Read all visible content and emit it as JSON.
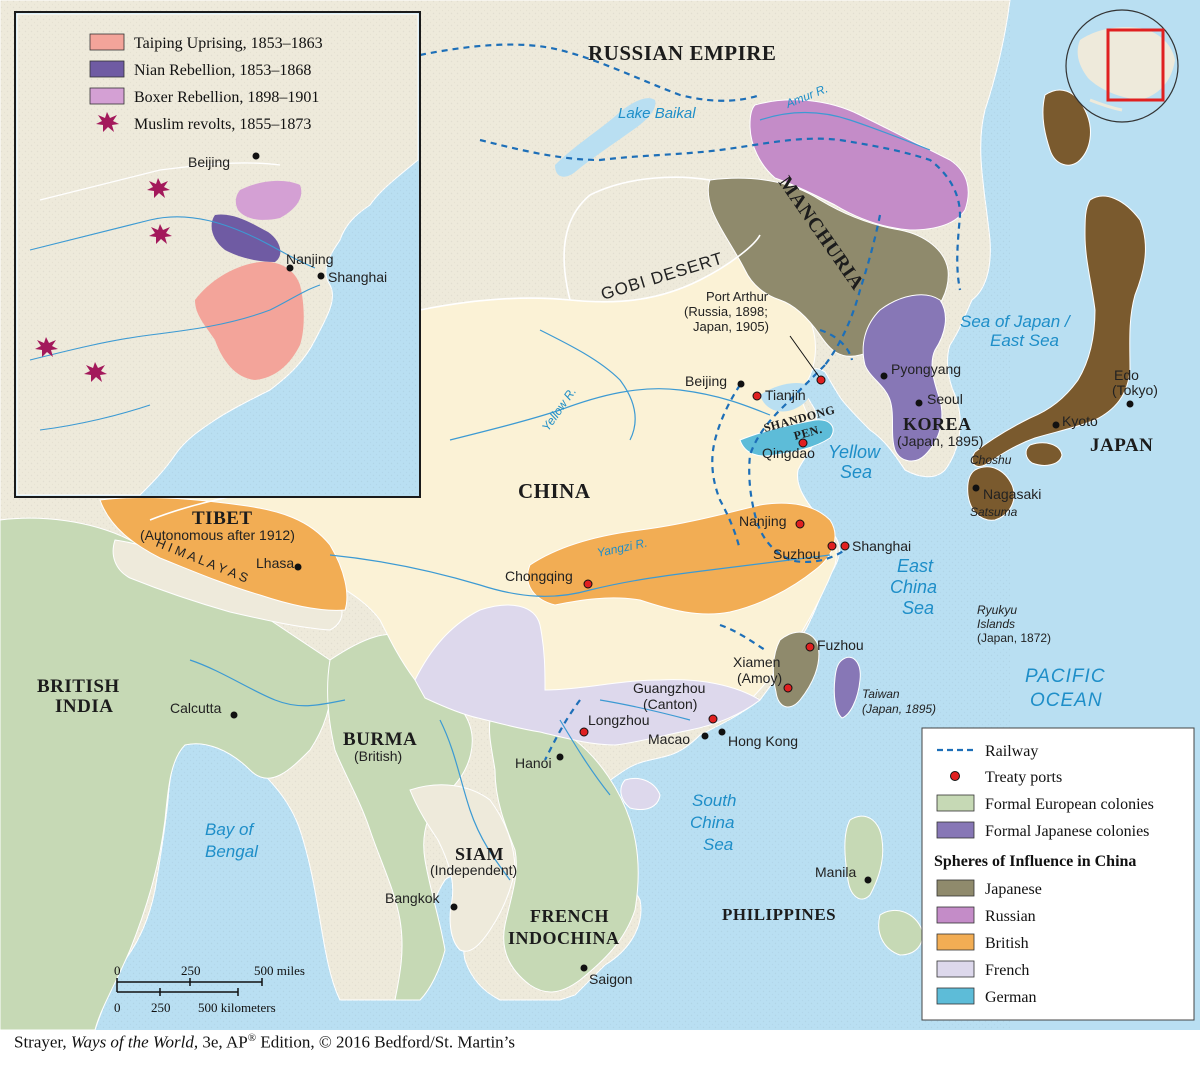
{
  "colors": {
    "ocean": "#b9dff2",
    "land": "#eeeadb",
    "china": "#fbf2d6",
    "european_colony": "#c6d9b5",
    "japanese_colony": "#8777b6",
    "sphere_japanese": "#8f8a6c",
    "sphere_russian": "#c48cc8",
    "sphere_british": "#f2ad54",
    "sphere_french": "#ddd8ec",
    "sphere_german": "#5dbcd8",
    "japan": "#7a5a2e",
    "taiping": "#f3a49a",
    "nian": "#6f5ba3",
    "boxer": "#d4a0d4",
    "muslim": "#a3195b",
    "railway": "#1d6fb8",
    "treaty_port": "#e02020"
  },
  "inset_legend": [
    {
      "label": "Taiping Uprising, 1853–1863",
      "swatch": "taiping"
    },
    {
      "label": "Nian Rebellion, 1853–1868",
      "swatch": "nian"
    },
    {
      "label": "Boxer Rebellion, 1898–1901",
      "swatch": "boxer"
    },
    {
      "label": "Muslim revolts, 1855–1873",
      "swatch": "muslim-star-icon"
    }
  ],
  "inset_places": {
    "beijing": "Beijing",
    "nanjing": "Nanjing",
    "shanghai": "Shanghai"
  },
  "legend": {
    "railway": "Railway",
    "treaty_ports": "Treaty ports",
    "european": "Formal European colonies",
    "japanese_colonies": "Formal Japanese colonies",
    "spheres_title": "Spheres of Influence in China",
    "japanese": "Japanese",
    "russian": "Russian",
    "british": "British",
    "french": "French",
    "german": "German"
  },
  "regions": {
    "russian_empire": "RUSSIAN EMPIRE",
    "manchuria": "MANCHURIA",
    "gobi": "GOBI DESERT",
    "china": "CHINA",
    "tibet": "TIBET",
    "tibet_note": "(Autonomous after 1912)",
    "himalayas": "H I M A L A Y A S",
    "british_india_1": "BRITISH",
    "british_india_2": "INDIA",
    "burma": "BURMA",
    "burma_note": "(British)",
    "siam": "SIAM",
    "siam_note": "(Independent)",
    "french_indochina_1": "FRENCH",
    "french_indochina_2": "INDOCHINA",
    "korea": "KOREA",
    "korea_note": "(Japan, 1895)",
    "japan": "JAPAN",
    "philippines": "PHILIPPINES",
    "shandong_1": "SHANDONG",
    "shandong_2": "PEN."
  },
  "water": {
    "lake_baikal": "Lake Baikal",
    "amur": "Amur R.",
    "yellow_river": "Yellow R.",
    "yangzi": "Yangzi R.",
    "sea_japan_1": "Sea of Japan /",
    "sea_japan_2": "East Sea",
    "yellow_sea_1": "Yellow",
    "yellow_sea_2": "Sea",
    "east_china_1": "East",
    "east_china_2": "China",
    "east_china_3": "Sea",
    "pacific_1": "PACIFIC",
    "pacific_2": "OCEAN",
    "south_china_1": "South",
    "south_china_2": "China",
    "south_china_3": "Sea",
    "bay_bengal_1": "Bay of",
    "bay_bengal_2": "Bengal"
  },
  "cities": {
    "port_arthur_1": "Port Arthur",
    "port_arthur_2": "(Russia, 1898;",
    "port_arthur_3": "Japan, 1905)",
    "beijing": "Beijing",
    "tianjin": "Tianjin",
    "qingdao": "Qingdao",
    "pyongyang": "Pyongyang",
    "seoul": "Seoul",
    "edo_1": "Edo",
    "edo_2": "(Tokyo)",
    "kyoto": "Kyoto",
    "choshu": "Choshu",
    "nagasaki": "Nagasaki",
    "satsuma": "Satsuma",
    "nanjing": "Nanjing",
    "suzhou": "Suzhou",
    "shanghai": "Shanghai",
    "chongqing": "Chongqing",
    "lhasa": "Lhasa",
    "fuzhou": "Fuzhou",
    "xiamen_1": "Xiamen",
    "xiamen_2": "(Amoy)",
    "taiwan_1": "Taiwan",
    "taiwan_2": "(Japan, 1895)",
    "ryukyu_1": "Ryukyu",
    "ryukyu_2": "Islands",
    "ryukyu_3": "(Japan, 1872)",
    "guangzhou_1": "Guangzhou",
    "guangzhou_2": "(Canton)",
    "longzhou": "Longzhou",
    "macao": "Macao",
    "hong_kong": "Hong Kong",
    "hanoi": "Hanoi",
    "calcutta": "Calcutta",
    "bangkok": "Bangkok",
    "saigon": "Saigon",
    "manila": "Manila"
  },
  "scale": {
    "mi0": "0",
    "mi250": "250",
    "mi500": "500 miles",
    "km0": "0",
    "km250": "250",
    "km500": "500 kilometers"
  },
  "caption": {
    "author": "Strayer, ",
    "title": "Ways of the World,",
    "edition": " 3e, AP",
    "reg": "®",
    "rest": " Edition, © 2016 Bedford/St. Martin’s"
  }
}
